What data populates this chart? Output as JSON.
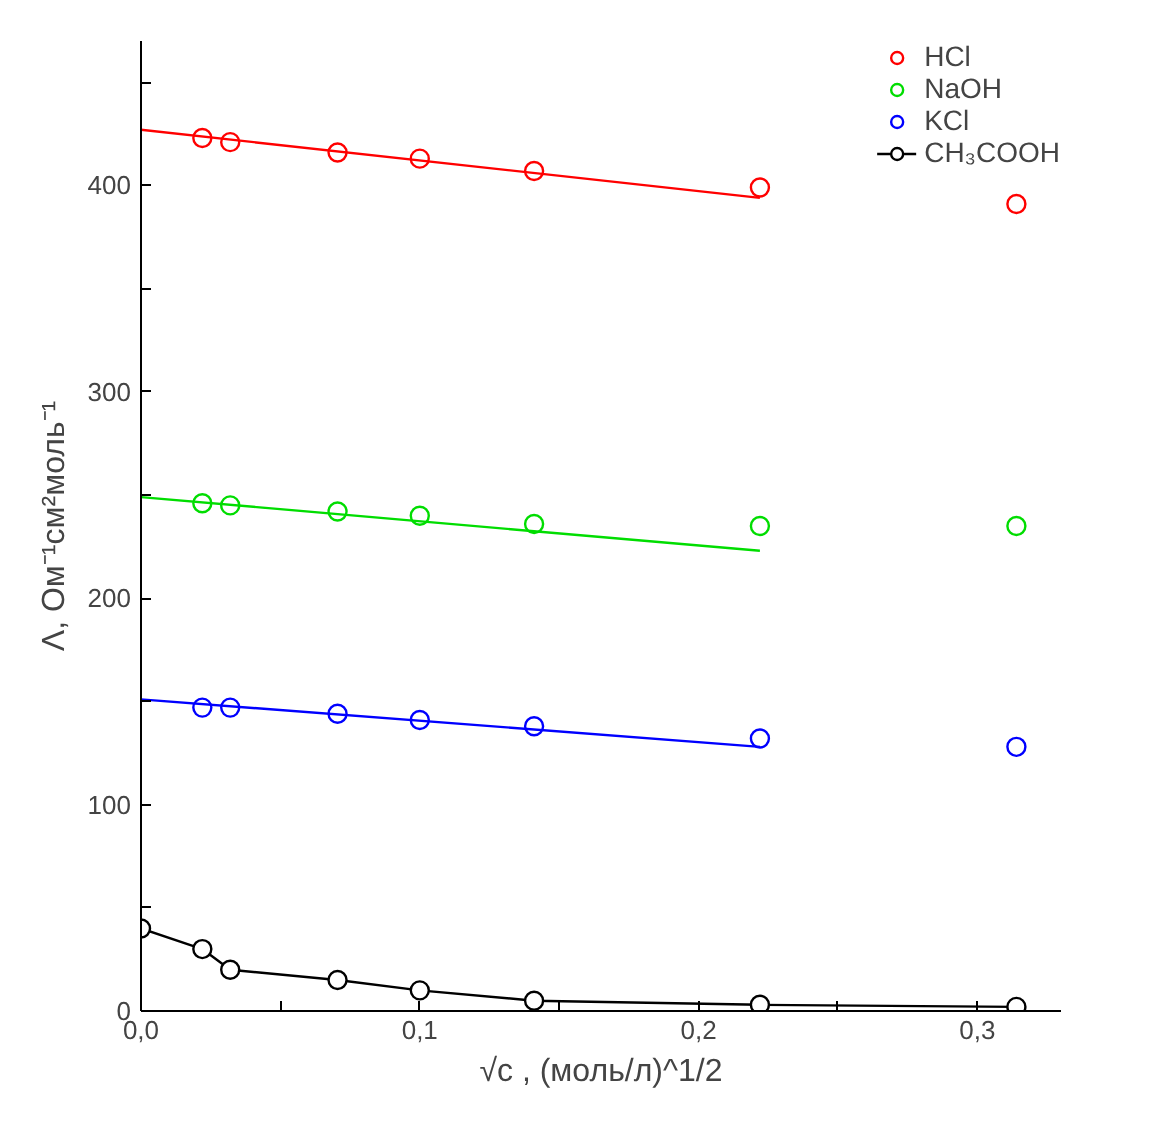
{
  "chart_data": {
    "type": "scatter",
    "ylabel": "Λ, Ом⁻¹см²моль⁻¹",
    "xlabel": "√c , (моль/л)^1/2",
    "xlim": [
      0,
      0.33
    ],
    "ylim": [
      0,
      470
    ],
    "xticks": [
      {
        "value": 0,
        "label": "0,0"
      },
      {
        "value": 0.05,
        "label": null
      },
      {
        "value": 0.1,
        "label": "0,1"
      },
      {
        "value": 0.15,
        "label": null
      },
      {
        "value": 0.2,
        "label": "0,2"
      },
      {
        "value": 0.25,
        "label": null
      },
      {
        "value": 0.3,
        "label": "0,3"
      }
    ],
    "yticks": [
      0,
      {
        "value": 50,
        "label": null
      },
      100,
      {
        "value": 150,
        "label": null
      },
      200,
      {
        "value": 250,
        "label": null
      },
      300,
      {
        "value": 350,
        "label": null
      },
      400,
      {
        "value": 450,
        "label": null
      }
    ],
    "grid": false,
    "legend": "top right",
    "marker": "circle",
    "series": [
      {
        "name": "HCl",
        "color": "#ff0000",
        "x": [
          0.022,
          0.032,
          0.0705,
          0.1,
          0.141,
          0.222,
          0.314
        ],
        "values": [
          423,
          421,
          416,
          413,
          407,
          399,
          391
        ]
      },
      {
        "name": "NaOH",
        "color": "#00dd00",
        "x": [
          0.022,
          0.032,
          0.0705,
          0.1,
          0.141,
          0.222,
          0.314
        ],
        "values": [
          246,
          245,
          242,
          240,
          236,
          235,
          235
        ]
      },
      {
        "name": "KCl",
        "color": "#0000ff",
        "x": [
          0.022,
          0.032,
          0.0705,
          0.1,
          0.141,
          0.222,
          0.314
        ],
        "values": [
          147,
          147,
          144,
          141,
          138,
          132,
          128
        ]
      },
      {
        "name": "CH₃COOH",
        "type": "line",
        "marker": "circle",
        "color": "#000000",
        "x": [
          0,
          0.022,
          0.032,
          0.0705,
          0.1,
          0.141,
          0.222,
          0.314
        ],
        "values": [
          40,
          30,
          20,
          15,
          10,
          5,
          3,
          2
        ]
      },
      {
        "type": "line",
        "marker": "none",
        "color": "#ff0000",
        "x": [
          0,
          0.222
        ],
        "values": [
          427,
          394
        ]
      },
      {
        "type": "line",
        "marker": "none",
        "color": "#00dd00",
        "x": [
          0,
          0.222
        ],
        "values": [
          249,
          223
        ]
      },
      {
        "type": "line",
        "marker": "none",
        "color": "#0000ff",
        "x": [
          0,
          0.222
        ],
        "values": [
          151,
          128
        ]
      }
    ]
  }
}
